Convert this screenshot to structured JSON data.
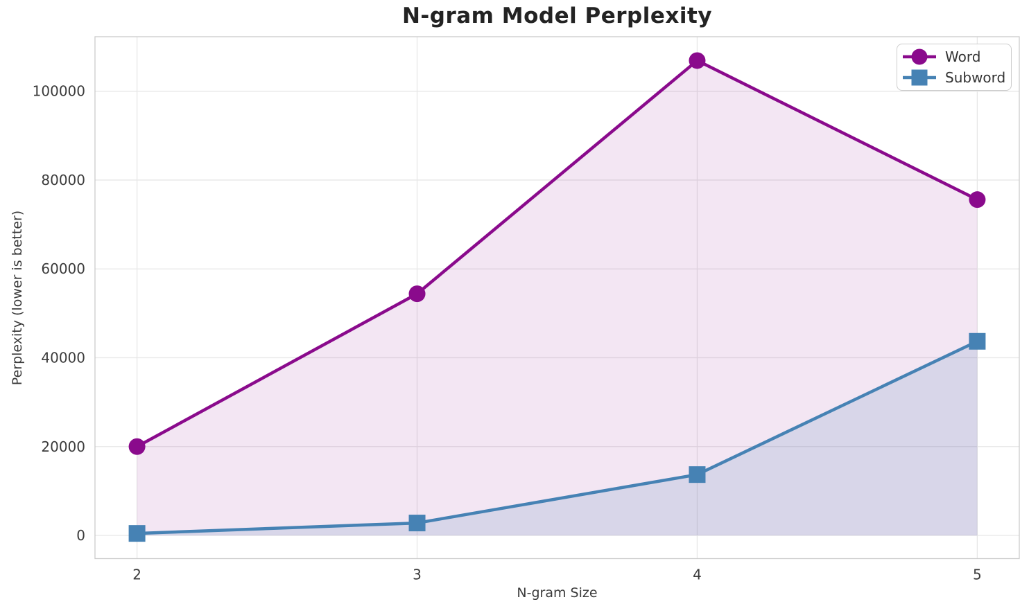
{
  "chart_data": {
    "type": "line",
    "title": "N-gram Model Perplexity",
    "xlabel": "N-gram Size",
    "ylabel": "Perplexity (lower is better)",
    "x": [
      2,
      3,
      4,
      5
    ],
    "series": [
      {
        "name": "Word",
        "values": [
          20000,
          54400,
          106900,
          75600
        ],
        "color": "#8A0A8C",
        "marker": "circle",
        "fill_opacity": 0.1
      },
      {
        "name": "Subword",
        "values": [
          450,
          2800,
          13700,
          43700
        ],
        "color": "#4682B4",
        "marker": "square",
        "fill_opacity": 0.15
      }
    ],
    "xticks": [
      2,
      3,
      4,
      5
    ],
    "yticks": [
      0,
      20000,
      40000,
      60000,
      80000,
      100000
    ],
    "xlim": [
      1.85,
      5.15
    ],
    "ylim": [
      -5220,
      112270
    ],
    "grid": true,
    "area_fill_to_zero": true,
    "legend_position": "upper right"
  },
  "style": {
    "grid_color": "#e7e7e7",
    "spine_color": "#cbcbcb",
    "tick_label_color": "#3b3b3b",
    "line_width": 4.5,
    "marker_size": 24
  }
}
